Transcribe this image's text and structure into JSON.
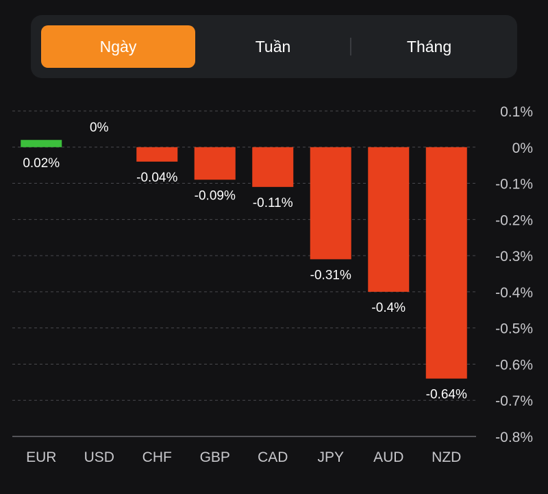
{
  "tabs": [
    {
      "label": "Ngày",
      "active": true
    },
    {
      "label": "Tuần",
      "active": false
    },
    {
      "label": "Tháng",
      "active": false
    }
  ],
  "colors": {
    "accent": "#f58a1f",
    "positive": "#3cbf3c",
    "negative": "#e8401c",
    "background": "#121214",
    "panel": "#1f2124",
    "grid": "#4a4a4e",
    "text": "#ffffff",
    "axis_text": "#c8c8cc"
  },
  "chart_data": {
    "type": "bar",
    "categories": [
      "EUR",
      "USD",
      "CHF",
      "GBP",
      "CAD",
      "JPY",
      "AUD",
      "NZD"
    ],
    "values": [
      0.02,
      0,
      -0.04,
      -0.09,
      -0.11,
      -0.31,
      -0.4,
      -0.64
    ],
    "value_labels": [
      "0.02%",
      "0%",
      "-0.04%",
      "-0.09%",
      "-0.11%",
      "-0.31%",
      "-0.4%",
      "-0.64%"
    ],
    "y_ticks": [
      0.1,
      0,
      -0.1,
      -0.2,
      -0.3,
      -0.4,
      -0.5,
      -0.6,
      -0.7,
      -0.8
    ],
    "y_tick_labels": [
      "0.1%",
      "0%",
      "-0.1%",
      "-0.2%",
      "-0.3%",
      "-0.4%",
      "-0.5%",
      "-0.6%",
      "-0.7%",
      "-0.8%"
    ],
    "ylim": [
      -0.8,
      0.1
    ],
    "y_axis_position": "right",
    "grid": true,
    "title": "",
    "xlabel": "",
    "ylabel": ""
  }
}
